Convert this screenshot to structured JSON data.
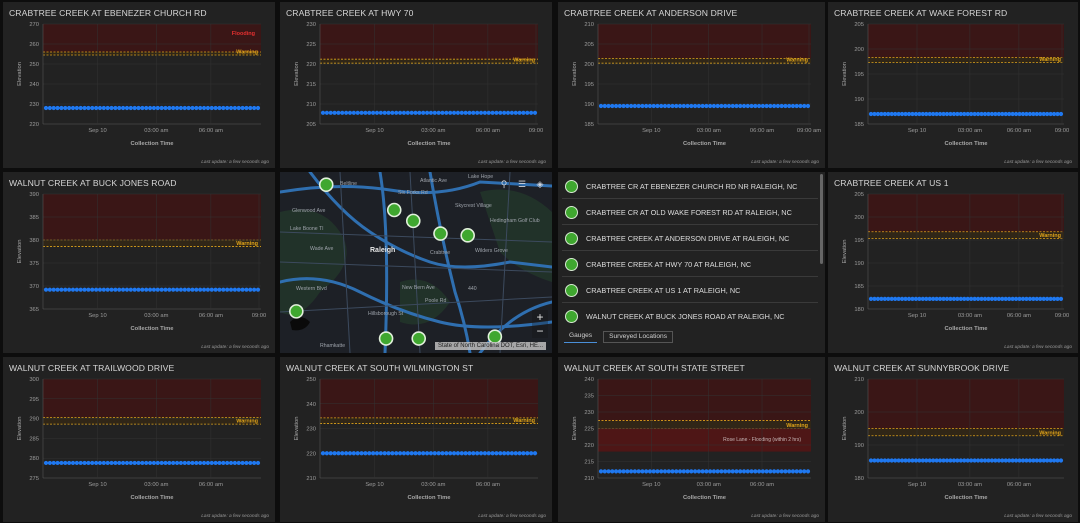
{
  "common": {
    "ylabel": "Elevation",
    "xlabel": "Collection Time",
    "last_update": "Last update: a few seconds ago",
    "warning_label": "Warning",
    "flooding_label": "Flooding"
  },
  "charts": [
    {
      "title": "CRABTREE CREEK AT EBENEZER CHURCH RD",
      "ylim": [
        220,
        270
      ],
      "ticks": [
        220,
        230,
        240,
        250,
        260,
        270
      ],
      "level": 228,
      "warning": [
        254.5,
        256
      ],
      "flood_top": 270,
      "xticks": [
        "Sep 10",
        "03:00 am",
        "06:00 am"
      ],
      "flood_label": "Flooding",
      "annotation": null
    },
    {
      "title": "CRABTREE CREEK AT HWY 70",
      "ylim": [
        205,
        230
      ],
      "ticks": [
        205,
        210,
        215,
        220,
        225,
        230
      ],
      "level": 207.8,
      "warning": [
        220.2,
        221.2
      ],
      "flood_top": 230,
      "xticks": [
        "Sep 10",
        "03:00 am",
        "06:00 am",
        "09:00"
      ],
      "flood_label": null,
      "annotation": null
    },
    {
      "title": "CRABTREE CREEK AT ANDERSON DRIVE",
      "ylim": [
        185,
        210
      ],
      "ticks": [
        185,
        190,
        195,
        200,
        205,
        210
      ],
      "level": 189.5,
      "warning": [
        200.2,
        201.4
      ],
      "flood_top": 210,
      "xticks": [
        "Sep 10",
        "03:00 am",
        "06:00 am",
        "09:00 am"
      ],
      "flood_label": null,
      "annotation": null
    },
    {
      "title": "CRABTREE CREEK AT WAKE FOREST RD",
      "ylim": [
        185,
        205
      ],
      "ticks": [
        185,
        190,
        195,
        200,
        205
      ],
      "level": 187,
      "warning": [
        197.3,
        198.3
      ],
      "flood_top": 205,
      "xticks": [
        "Sep 10",
        "03:00 am",
        "06:00 am",
        "09:00"
      ],
      "flood_label": null,
      "annotation": null
    },
    {
      "title": "WALNUT CREEK AT BUCK JONES ROAD",
      "ylim": [
        365,
        390
      ],
      "ticks": [
        365,
        370,
        375,
        380,
        385,
        390
      ],
      "level": 369.2,
      "warning": [
        378.6,
        380
      ],
      "flood_top": 390,
      "xticks": [
        "Sep 10",
        "03:00 am",
        "06:00 am",
        "09:00"
      ],
      "flood_label": null,
      "annotation": null
    },
    {
      "title": "CRABTREE CREEK AT US 1",
      "ylim": [
        180,
        205
      ],
      "ticks": [
        180,
        185,
        190,
        195,
        200,
        205
      ],
      "level": 182.2,
      "warning": [
        195.3,
        196.8
      ],
      "flood_top": 205,
      "xticks": [
        "Sep 10",
        "03:00 am",
        "06:00 am",
        "09:00"
      ],
      "flood_label": null,
      "annotation": null
    },
    {
      "title": "WALNUT CREEK AT TRAILWOOD DRIVE",
      "ylim": [
        275,
        300
      ],
      "ticks": [
        275,
        280,
        285,
        290,
        295,
        300
      ],
      "level": 278.8,
      "warning": [
        288.6,
        290.3
      ],
      "flood_top": 300,
      "xticks": [
        "Sep 10",
        "03:00 am",
        "06:00 am"
      ],
      "flood_label": null,
      "annotation": null
    },
    {
      "title": "WALNUT CREEK AT SOUTH WILMINGTON ST",
      "ylim": [
        210,
        250
      ],
      "ticks": [
        210,
        220,
        230,
        240,
        250
      ],
      "level": 220,
      "warning": [
        232,
        234.3
      ],
      "flood_top": 250,
      "xticks": [
        "Sep 10",
        "03:00 am",
        "06:00 am"
      ],
      "flood_label": null,
      "annotation": null
    },
    {
      "title": "WALNUT CREEK AT SOUTH STATE STREET",
      "ylim": [
        210,
        240
      ],
      "ticks": [
        210,
        215,
        220,
        225,
        230,
        235,
        240
      ],
      "level": 212,
      "warning": [
        225,
        227.4
      ],
      "flood_top": 240,
      "xticks": [
        "Sep 10",
        "03:00 am",
        "06:00 am"
      ],
      "flood_label": null,
      "annotation": {
        "text": "Rose Lane - Flooding (within 2 hrs)",
        "y": 221.2,
        "band": [
          218,
          225
        ]
      }
    },
    {
      "title": "WALNUT CREEK AT SUNNYBROOK DRIVE",
      "ylim": [
        180,
        210
      ],
      "ticks": [
        180,
        190,
        200,
        210
      ],
      "level": 185.3,
      "warning": [
        192.8,
        195
      ],
      "flood_top": 210,
      "xticks": [
        "Sep 10",
        "03:00 am",
        "06:00 am"
      ],
      "flood_label": null,
      "annotation": null
    }
  ],
  "map": {
    "attribution": "State of North Carolina DOT, Esri, HE...",
    "zoom_in": "+",
    "zoom_out": "−",
    "search_icon": "search-icon",
    "list_icon": "list-icon",
    "layers_icon": "layers-icon",
    "labels": [
      "Raleigh",
      "Wade Ave",
      "Atlantic Ave",
      "Six Forks Rd",
      "Glenwood Ave",
      "Lake Boone Tl",
      "Skycrest Village",
      "Hedingham Golf Club",
      "Wilders Grove",
      "Crabtree",
      "New Bern Ave",
      "Poole Rd",
      "Hillsborough St",
      "Western Blvd",
      "Rhamkatte",
      "Beltline",
      "Lake Hope",
      "440"
    ],
    "gauges": [
      [
        0.17,
        0.07
      ],
      [
        0.42,
        0.21
      ],
      [
        0.49,
        0.27
      ],
      [
        0.59,
        0.34
      ],
      [
        0.69,
        0.35
      ],
      [
        0.06,
        0.77
      ],
      [
        0.39,
        0.92
      ],
      [
        0.51,
        0.92
      ],
      [
        0.79,
        0.91
      ]
    ]
  },
  "gauge_list": {
    "items": [
      "CRABTREE CR AT EBENEZER CHURCH RD NR RALEIGH, NC",
      "CRABTREE CR AT OLD WAKE FOREST RD AT RALEIGH, NC",
      "CRABTREE CREEK AT ANDERSON DRIVE AT RALEIGH, NC",
      "CRABTREE CREEK AT HWY 70 AT RALEIGH, NC",
      "CRABTREE CREEK AT US 1 AT RALEIGH, NC",
      "WALNUT CREEK AT BUCK JONES ROAD AT RALEIGH, NC"
    ],
    "tabs": [
      "Gauges",
      "Surveyed Locations"
    ]
  },
  "colors": {
    "accent": "#1f78f0",
    "warning": "#e0a41a",
    "flood": "#3a1616",
    "flood_text": "#e63030",
    "panel": "#222222"
  }
}
